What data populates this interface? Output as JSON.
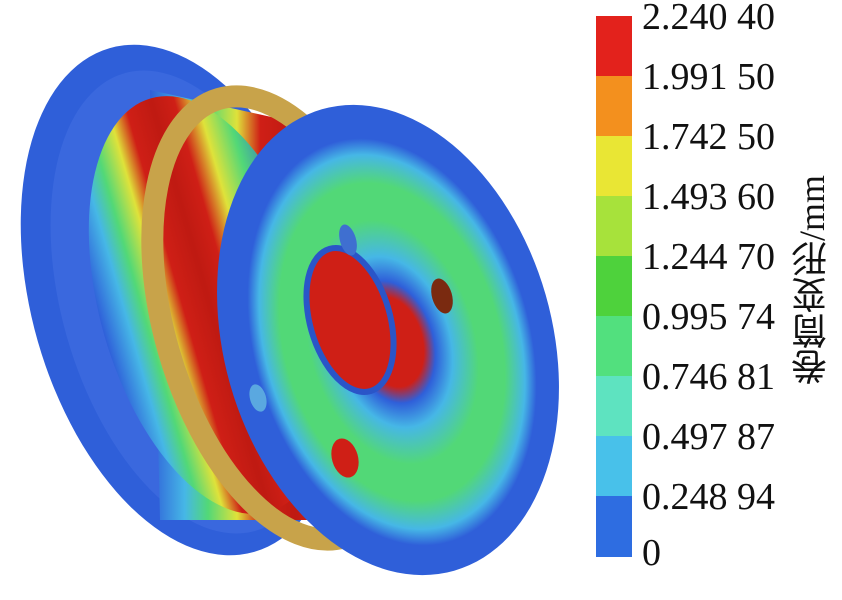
{
  "legend": {
    "title": "卷筒变形/mm",
    "ticks": [
      "2.240 40",
      "1.991 50",
      "1.742 50",
      "1.493 60",
      "1.244 70",
      "0.995 74",
      "0.746 81",
      "0.497 87",
      "0.248 94",
      "0"
    ],
    "band_colors": [
      "#e3221c",
      "#f3901e",
      "#e9e634",
      "#a7e23b",
      "#4ed23c",
      "#52e07e",
      "#5ee3c0",
      "#48c1ea",
      "#2e6de1"
    ],
    "color_scale": "rainbow: blue (0) to red (max)"
  },
  "model": {
    "description_icon": "deformed-drum-contour-icon",
    "colors": {
      "low": "#2f5fd9",
      "mid_low": "#46b7e6",
      "mid": "#52d877",
      "mid_high": "#dfe23a",
      "high": "#cf1f16",
      "ring": "#c8a34a"
    }
  }
}
